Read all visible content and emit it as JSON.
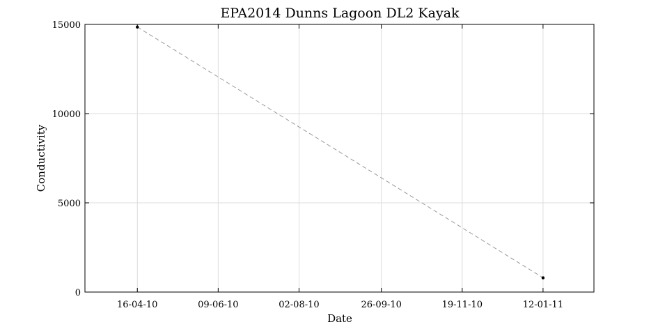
{
  "chart_data": {
    "type": "line",
    "title": "EPA2014 Dunns Lagoon DL2 Kayak",
    "xlabel": "Date",
    "ylabel": "Conductivity",
    "x_axis_type": "date",
    "x_tick_labels": [
      "16-04-10",
      "09-06-10",
      "02-08-10",
      "26-09-10",
      "19-11-10",
      "12-01-11"
    ],
    "x_ticks": [
      "2010-04-16",
      "2010-06-09",
      "2010-08-02",
      "2010-09-26",
      "2010-11-19",
      "2011-01-12"
    ],
    "xlim": [
      "2010-03-12",
      "2011-02-15"
    ],
    "y_ticks": [
      0,
      5000,
      10000,
      15000
    ],
    "y_tick_labels": [
      "0",
      "5000",
      "10000",
      "15000"
    ],
    "ylim": [
      0,
      15000
    ],
    "grid": true,
    "legend": "none",
    "series": [
      {
        "x": [
          "2010-04-16",
          "2011-01-12"
        ],
        "y": [
          14850,
          800
        ],
        "line_style": "dashed",
        "line_color": "#999999",
        "marker_color": "#000000"
      }
    ]
  }
}
